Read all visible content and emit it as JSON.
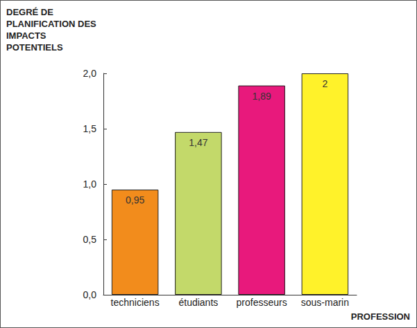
{
  "chart_data": {
    "type": "bar",
    "y_label": "DEGRÉ DE PLANIFICATION DES IMPACTS POTENTIELS",
    "x_label": "PROFESSION",
    "categories": [
      "techniciens",
      "étudiants",
      "professeurs",
      "sous-marin"
    ],
    "values": [
      0.95,
      1.47,
      1.89,
      2
    ],
    "value_labels": [
      "0,95",
      "1,47",
      "1,89",
      "2"
    ],
    "colors": [
      "#f28c1c",
      "#c3d96a",
      "#e8197c",
      "#fff22a"
    ],
    "ylim": [
      0,
      2
    ],
    "yticks": [
      {
        "value": 0,
        "label": "0,0"
      },
      {
        "value": 0.5,
        "label": "0,5"
      },
      {
        "value": 1,
        "label": "1,0"
      },
      {
        "value": 1.5,
        "label": "1,5"
      },
      {
        "value": 2,
        "label": "2,0"
      }
    ],
    "grid": false,
    "data_labels": true
  }
}
